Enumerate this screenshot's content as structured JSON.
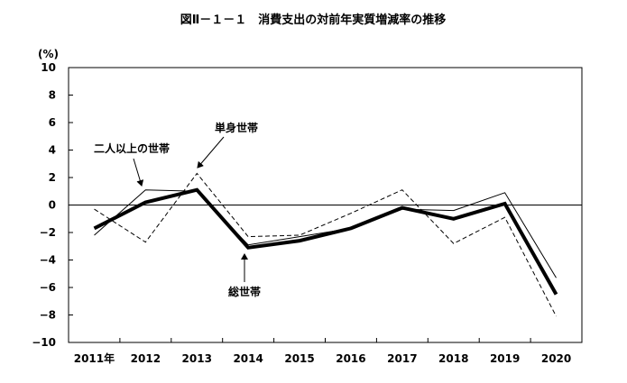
{
  "chart_data": {
    "type": "line",
    "title": "図Ⅱ－１－１　消費支出の対前年実質増減率の推移",
    "ylabel": "(%)",
    "xlabel": "",
    "categories": [
      "2011年",
      "2012",
      "2013",
      "2014",
      "2015",
      "2016",
      "2017",
      "2018",
      "2019",
      "2020"
    ],
    "ylim": [
      -10,
      10
    ],
    "yticks": [
      "10",
      "8",
      "6",
      "4",
      "2",
      "0",
      "−2",
      "−4",
      "−6",
      "−8",
      "−10"
    ],
    "ytick_values": [
      10,
      8,
      6,
      4,
      2,
      0,
      -2,
      -4,
      -6,
      -8,
      -10
    ],
    "grid": false,
    "zero_line": true,
    "series": [
      {
        "name": "総世帯",
        "style": "thick-solid",
        "color": "#000000",
        "values": [
          -1.7,
          0.2,
          1.1,
          -3.1,
          -2.6,
          -1.7,
          -0.2,
          -1.0,
          0.1,
          -6.5
        ]
      },
      {
        "name": "二人以上の世帯",
        "style": "thin-solid",
        "color": "#000000",
        "values": [
          -2.2,
          1.1,
          1.0,
          -2.9,
          -2.3,
          -1.7,
          -0.3,
          -0.4,
          0.9,
          -5.3
        ]
      },
      {
        "name": "単身世帯",
        "style": "dashed",
        "color": "#000000",
        "values": [
          -0.3,
          -2.7,
          2.3,
          -2.3,
          -2.2,
          -0.6,
          1.1,
          -2.8,
          -0.9,
          -8.1
        ]
      }
    ],
    "annotations": [
      {
        "text": "二人以上の世帯",
        "points_to": "二人以上の世帯",
        "x_index": 1,
        "y": 1.1
      },
      {
        "text": "単身世帯",
        "points_to": "単身世帯",
        "x_index": 2,
        "y": 2.3
      },
      {
        "text": "総世帯",
        "points_to": "総世帯",
        "x_index": 3,
        "y": -3.1
      }
    ]
  }
}
